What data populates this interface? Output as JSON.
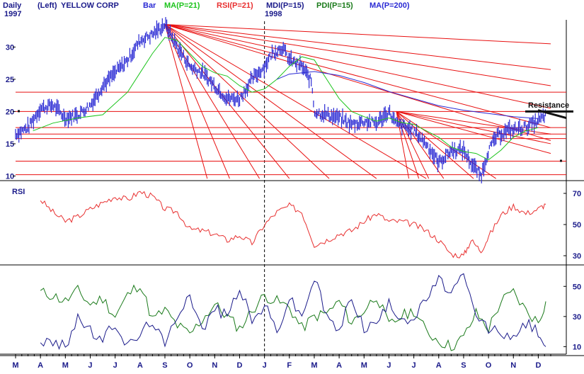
{
  "header": {
    "period": "Daily",
    "scale_mode": "(Left)",
    "symbol": "YELLOW CORP",
    "start_year": "1997",
    "mid_year": "1998",
    "legend": [
      {
        "label": "Bar",
        "color": "#2a2ad4"
      },
      {
        "label": "MA(P=21)",
        "color": "#1cc41c"
      },
      {
        "label": "RSI(P=21)",
        "color": "#e83030"
      },
      {
        "label": "MDI(P=15)",
        "color": "#1a1a8a"
      },
      {
        "label": "PDI(P=15)",
        "color": "#1a7a1a"
      },
      {
        "label": "MA(P=200)",
        "color": "#2a2ad4"
      }
    ]
  },
  "annotations": {
    "resistance": "Resistance"
  },
  "colors": {
    "bar": "#2a2ad4",
    "ma21": "#1cc41c",
    "ma200": "#2a2ad4",
    "rsi": "#e83030",
    "mdi": "#1a1a8a",
    "pdi": "#1a7a1a",
    "trendline": "#e81010",
    "text": "#1a1a8a"
  },
  "chart_data": [
    {
      "type": "line",
      "panel": "price",
      "title": "YELLOW CORP",
      "ylim": [
        9.5,
        34
      ],
      "yticks": [
        10,
        15,
        20,
        25,
        30
      ],
      "x_range": [
        0,
        21.5
      ],
      "x_note": "x = months since start of March 1997",
      "month_labels": [
        "M",
        "A",
        "M",
        "J",
        "J",
        "A",
        "S",
        "O",
        "N",
        "D",
        "J",
        "F",
        "M",
        "A",
        "M",
        "J",
        "J",
        "A",
        "S",
        "O",
        "N",
        "D"
      ],
      "series": [
        {
          "name": "Bar",
          "x": [
            0,
            0.5,
            1,
            1.5,
            2,
            2.5,
            3,
            3.5,
            4,
            4.5,
            5,
            5.5,
            6,
            6.5,
            7,
            7.5,
            8,
            8.5,
            9,
            9.5,
            10,
            10.3,
            10.7,
            11,
            11.5,
            11.9,
            12,
            12.5,
            13,
            13.5,
            14,
            14.5,
            15,
            15.3,
            15.5,
            16,
            16.5,
            17,
            17.5,
            18,
            18.3,
            18.7,
            19,
            19.3,
            19.7,
            20,
            20.5,
            21,
            21.3
          ],
          "y": [
            16.5,
            17.5,
            20.5,
            21,
            19,
            19.5,
            21,
            24,
            26,
            28,
            31,
            32,
            33.5,
            30,
            27,
            26,
            24,
            22,
            22,
            25,
            27,
            29,
            30,
            28,
            27,
            24.5,
            20,
            19.5,
            19,
            18,
            18.5,
            18.2,
            20,
            18,
            17.8,
            17,
            15,
            12,
            14,
            14,
            12,
            10,
            14,
            16,
            17,
            17.2,
            17.6,
            18.5,
            19.5
          ]
        },
        {
          "name": "MA(P=21)",
          "x": [
            0.7,
            1.5,
            2.5,
            3.5,
            4.5,
            5,
            5.5,
            6,
            6.5,
            7,
            7.5,
            8,
            8.5,
            9,
            9.5,
            10,
            10.5,
            11,
            11.5,
            12,
            12.5,
            13,
            13.5,
            14,
            14.5,
            15,
            15.5,
            16,
            16.5,
            17,
            17.5,
            18,
            18.5,
            19,
            19.5,
            20,
            20.5,
            21
          ],
          "y": [
            17,
            18.2,
            19,
            19.5,
            23,
            26,
            29,
            31.5,
            31,
            29,
            27,
            26,
            25.5,
            24,
            23,
            23.5,
            25,
            27,
            28.5,
            28,
            25,
            22,
            20,
            19.2,
            18.5,
            19,
            18.3,
            18,
            17,
            16,
            14.5,
            13.8,
            13.5,
            12.5,
            14,
            16,
            17,
            17.5
          ]
        },
        {
          "name": "MA(P=200)",
          "x": [
            10.5,
            11,
            12,
            13,
            14,
            15,
            16,
            17,
            18,
            19,
            20,
            21
          ],
          "y": [
            25,
            25.8,
            26.2,
            25.6,
            24.5,
            23.1,
            22,
            20.9,
            20.2,
            19.7,
            19.2,
            18.9
          ]
        }
      ],
      "resistance_level": 20
    },
    {
      "type": "line",
      "panel": "rsi",
      "title": "RSI",
      "ylim": [
        25,
        75
      ],
      "yticks": [
        30,
        50,
        70
      ],
      "series": [
        {
          "name": "RSI(P=21)",
          "x": [
            1,
            1.5,
            2,
            2.5,
            3,
            3.5,
            4,
            4.5,
            5,
            5.5,
            6,
            6.5,
            7,
            7.5,
            8,
            8.5,
            9,
            9.5,
            10,
            10.5,
            11,
            11.5,
            12,
            12.5,
            13,
            13.5,
            14,
            14.5,
            15,
            15.5,
            16,
            16.5,
            17,
            17.5,
            18,
            18.3,
            18.7,
            19,
            19.5,
            20,
            20.5,
            21,
            21.3
          ],
          "y": [
            66,
            58,
            52,
            55,
            60,
            64,
            68,
            66,
            71,
            68,
            60,
            58,
            47,
            46,
            44,
            40,
            43,
            38,
            50,
            58,
            62,
            58,
            37,
            40,
            44,
            46,
            52,
            57,
            52,
            52,
            50,
            46,
            40,
            31,
            30,
            40,
            33,
            42,
            56,
            62,
            57,
            60,
            63
          ]
        }
      ]
    },
    {
      "type": "line",
      "panel": "dmi",
      "ylim": [
        5,
        60
      ],
      "yticks": [
        10,
        30,
        50
      ],
      "series": [
        {
          "name": "PDI(P=15)",
          "x": [
            1,
            1.5,
            2,
            2.5,
            3,
            3.5,
            4,
            4.5,
            5,
            5.5,
            6,
            6.5,
            7,
            7.5,
            8,
            8.5,
            9,
            9.5,
            10,
            10.5,
            11,
            11.5,
            12,
            12.5,
            13,
            13.5,
            14,
            14.5,
            15,
            15.5,
            16,
            16.5,
            17,
            17.5,
            18,
            18.5,
            19,
            19.5,
            20,
            20.5,
            21,
            21.3
          ],
          "y": [
            46,
            44,
            40,
            47,
            38,
            42,
            30,
            44,
            52,
            28,
            34,
            24,
            18,
            28,
            38,
            30,
            22,
            34,
            44,
            40,
            36,
            22,
            30,
            32,
            40,
            26,
            34,
            44,
            24,
            30,
            34,
            20,
            14,
            10,
            16,
            32,
            22,
            40,
            46,
            34,
            26,
            40
          ]
        },
        {
          "name": "MDI(P=15)",
          "x": [
            1,
            1.5,
            2,
            2.5,
            3,
            3.5,
            4,
            4.5,
            5,
            5.5,
            6,
            6.5,
            7,
            7.5,
            8,
            8.5,
            9,
            9.5,
            10,
            10.5,
            11,
            11.5,
            12,
            12.5,
            13,
            13.5,
            14,
            14.5,
            15,
            15.5,
            16,
            16.5,
            17,
            17.5,
            18,
            18.5,
            19,
            19.5,
            20,
            20.5,
            21,
            21.3
          ],
          "y": [
            14,
            12,
            10,
            30,
            20,
            14,
            26,
            10,
            18,
            28,
            10,
            32,
            46,
            20,
            36,
            30,
            50,
            26,
            38,
            20,
            42,
            30,
            56,
            30,
            20,
            44,
            22,
            26,
            38,
            30,
            28,
            42,
            54,
            46,
            56,
            30,
            22,
            20,
            14,
            26,
            20,
            10
          ]
        }
      ]
    }
  ]
}
